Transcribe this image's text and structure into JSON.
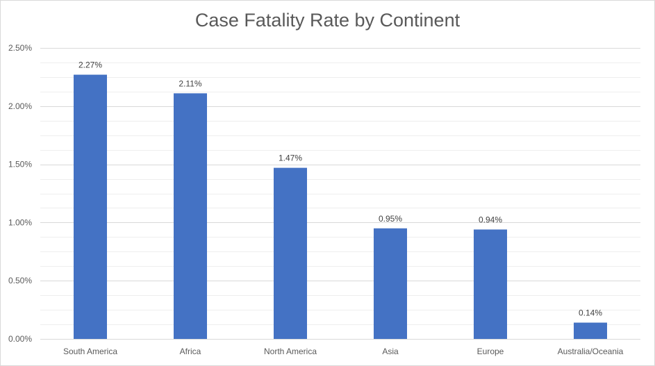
{
  "chart_data": {
    "type": "bar",
    "title": "Case Fatality Rate by Continent",
    "xlabel": "",
    "ylabel": "",
    "categories": [
      "South America",
      "Africa",
      "North America",
      "Asia",
      "Europe",
      "Australia/Oceania"
    ],
    "values": [
      2.27,
      2.11,
      1.47,
      0.95,
      0.94,
      0.14
    ],
    "data_labels": [
      "2.27%",
      "2.11%",
      "1.47%",
      "0.95%",
      "0.94%",
      "0.14%"
    ],
    "ylim": [
      0,
      2.5
    ],
    "y_ticks": [
      0,
      0.5,
      1.0,
      1.5,
      2.0,
      2.5
    ],
    "y_tick_labels": [
      "0.00%",
      "0.50%",
      "1.00%",
      "1.50%",
      "2.00%",
      "2.50%"
    ],
    "grid": true,
    "bar_color": "#4472c4",
    "grid_color": "#d9d9d9"
  }
}
